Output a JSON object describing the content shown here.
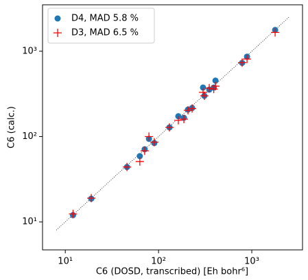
{
  "chart_data": {
    "type": "scatter",
    "xlabel": "C6 (DOSD, transcribed) [Eh bohr⁶]",
    "ylabel": "C6 (calc.)",
    "xscale": "log",
    "yscale": "log",
    "xlim": [
      5.7,
      3500
    ],
    "ylim": [
      4.7,
      3500
    ],
    "xticks": [
      {
        "value": 10,
        "label": "10¹"
      },
      {
        "value": 100,
        "label": "10²"
      },
      {
        "value": 1000,
        "label": "10³"
      }
    ],
    "yticks": [
      {
        "value": 10,
        "label": "10¹"
      },
      {
        "value": 100,
        "label": "10²"
      },
      {
        "value": 1000,
        "label": "10³"
      }
    ],
    "diagonal": [
      8,
      2500
    ],
    "legend": "upper left",
    "x": [
      12.1,
      19,
      45.9,
      63,
      71,
      78.9,
      90,
      131,
      163,
      187,
      207,
      229,
      300,
      310,
      350,
      391,
      408,
      788,
      889,
      1780
    ],
    "series": [
      {
        "name": "D4, MAD 5.8 %",
        "color": "#1f77b4",
        "marker": "circle",
        "values": [
          12,
          18.7,
          44,
          59,
          71,
          94,
          84,
          128,
          173,
          166,
          207,
          216,
          375,
          300,
          355,
          375,
          452,
          730,
          863,
          1775
        ]
      },
      {
        "name": "D3, MAD 6.5 %",
        "color": "#ff0000",
        "marker": "plus",
        "values": [
          12.4,
          19,
          44,
          51,
          68,
          100,
          86,
          128,
          155,
          160,
          203,
          213,
          330,
          300,
          370,
          360,
          390,
          735,
          810,
          1660
        ]
      }
    ]
  }
}
